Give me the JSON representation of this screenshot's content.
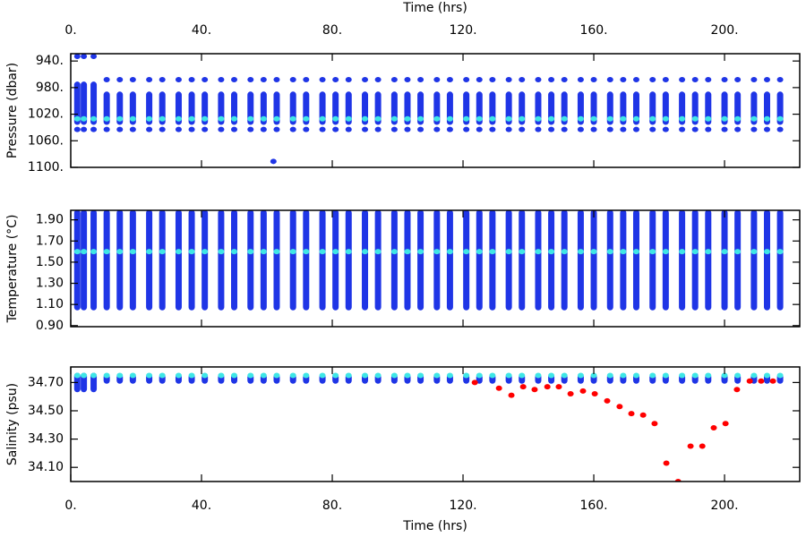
{
  "chart_data": [
    {
      "type": "scatter",
      "xlabel": "Time (hrs)",
      "ylabel": "Pressure (dbar)",
      "xlim": [
        0,
        223
      ],
      "xticks": [
        {
          "value": 0,
          "label": "0."
        },
        {
          "value": 40,
          "label": "40."
        },
        {
          "value": 80,
          "label": "80."
        },
        {
          "value": 120,
          "label": "120."
        },
        {
          "value": 160,
          "label": "160."
        },
        {
          "value": 200,
          "label": "200."
        }
      ],
      "ylim": [
        1100,
        929
      ],
      "yticks": [
        {
          "value": 940,
          "label": "940."
        },
        {
          "value": 980,
          "label": "980."
        },
        {
          "value": 1020,
          "label": "1020."
        },
        {
          "value": 1060,
          "label": "1060."
        },
        {
          "value": 1100,
          "label": "1100."
        }
      ],
      "x": [
        2,
        4,
        7,
        11,
        15,
        19,
        24,
        28,
        33,
        37,
        41,
        46,
        50,
        55,
        59,
        63,
        68,
        72,
        77,
        81,
        85,
        90,
        94,
        99,
        103,
        107,
        112,
        116,
        121,
        125,
        129,
        134,
        138,
        143,
        147,
        151,
        156,
        160,
        165,
        169,
        173,
        178,
        182,
        187,
        191,
        195,
        200,
        204,
        209,
        213,
        217
      ],
      "series": [
        {
          "color": "#1f35e6",
          "low": [
            975,
            975,
            975,
            990,
            990,
            990,
            990,
            990,
            990,
            990,
            990,
            990,
            990,
            990,
            990,
            990,
            990,
            990,
            990,
            990,
            990,
            990,
            990,
            990,
            990,
            990,
            990,
            990,
            990,
            990,
            990,
            990,
            990,
            990,
            990,
            990,
            990,
            990,
            990,
            990,
            990,
            990,
            990,
            990,
            990,
            990,
            990,
            990,
            990,
            990,
            990
          ],
          "high": [
            1032,
            1032,
            1032,
            1032,
            1032,
            1032,
            1032,
            1032,
            1032,
            1032,
            1032,
            1032,
            1032,
            1032,
            1032,
            1032,
            1032,
            1032,
            1032,
            1032,
            1032,
            1032,
            1032,
            1032,
            1032,
            1032,
            1032,
            1032,
            1032,
            1032,
            1032,
            1032,
            1032,
            1032,
            1032,
            1032,
            1032,
            1032,
            1032,
            1032,
            1032,
            1032,
            1032,
            1032,
            1032,
            1032,
            1032,
            1032,
            1032,
            1032,
            1032
          ]
        },
        {
          "color": "#1f35e6",
          "values": [
            933,
            933,
            933,
            968,
            968,
            968,
            968,
            968,
            968,
            968,
            968,
            968,
            968,
            968,
            968,
            968,
            968,
            968,
            968,
            968,
            968,
            968,
            968,
            968,
            968,
            968,
            968,
            968,
            968,
            968,
            968,
            968,
            968,
            968,
            968,
            968,
            968,
            968,
            968,
            968,
            968,
            968,
            968,
            968,
            968,
            968,
            968,
            968,
            968,
            968,
            968
          ]
        },
        {
          "color": "#1f35e6",
          "values": [
            1043,
            1043,
            1043,
            1043,
            1043,
            1043,
            1043,
            1043,
            1043,
            1043,
            1043,
            1043,
            1043,
            1043,
            1043,
            1043,
            1043,
            1043,
            1043,
            1043,
            1043,
            1043,
            1043,
            1043,
            1043,
            1043,
            1043,
            1043,
            1043,
            1043,
            1043,
            1043,
            1043,
            1043,
            1043,
            1043,
            1043,
            1043,
            1043,
            1043,
            1043,
            1043,
            1043,
            1043,
            1043,
            1043,
            1043,
            1043,
            1043,
            1043,
            1043
          ]
        },
        {
          "color": "#1f35e6",
          "x": [
            62
          ],
          "values": [
            1091
          ]
        },
        {
          "color": "#3fe6e6",
          "values": [
            1027,
            1027,
            1027,
            1027,
            1027,
            1027,
            1027,
            1027,
            1027,
            1027,
            1027,
            1027,
            1027,
            1027,
            1027,
            1027,
            1027,
            1027,
            1027,
            1027,
            1027,
            1027,
            1027,
            1027,
            1027,
            1027,
            1027,
            1027,
            1027,
            1027,
            1027,
            1027,
            1027,
            1027,
            1027,
            1027,
            1027,
            1027,
            1027,
            1027,
            1027,
            1027,
            1027,
            1027,
            1027,
            1027,
            1027,
            1027,
            1027,
            1027,
            1027
          ]
        }
      ]
    },
    {
      "type": "scatter",
      "ylabel": "Temperature (°C)",
      "xlim": [
        0,
        223
      ],
      "xticks": [
        0,
        40,
        80,
        120,
        160,
        200
      ],
      "ylim": [
        0.89,
        1.99
      ],
      "yticks": [
        {
          "value": 0.9,
          "label": "0.90"
        },
        {
          "value": 1.1,
          "label": "1.10"
        },
        {
          "value": 1.3,
          "label": "1.30"
        },
        {
          "value": 1.5,
          "label": "1.50"
        },
        {
          "value": 1.7,
          "label": "1.70"
        },
        {
          "value": 1.9,
          "label": "1.90"
        }
      ],
      "x": [
        2,
        4,
        7,
        11,
        15,
        19,
        24,
        28,
        33,
        37,
        41,
        46,
        50,
        55,
        59,
        63,
        68,
        72,
        77,
        81,
        85,
        90,
        94,
        99,
        103,
        107,
        112,
        116,
        121,
        125,
        129,
        134,
        138,
        143,
        147,
        151,
        156,
        160,
        165,
        169,
        173,
        178,
        182,
        187,
        191,
        195,
        200,
        204,
        209,
        213,
        217
      ],
      "series": [
        {
          "color": "#1f35e6",
          "low": [
            1.07,
            1.07,
            1.07,
            1.07,
            1.07,
            1.07,
            1.07,
            1.07,
            1.07,
            1.07,
            1.07,
            1.07,
            1.07,
            1.07,
            1.07,
            1.07,
            1.07,
            1.07,
            1.07,
            1.07,
            1.07,
            1.07,
            1.07,
            1.07,
            1.07,
            1.07,
            1.07,
            1.07,
            1.07,
            1.07,
            1.07,
            1.07,
            1.07,
            1.07,
            1.07,
            1.07,
            1.07,
            1.07,
            1.07,
            1.07,
            1.07,
            1.07,
            1.07,
            1.07,
            1.07,
            1.07,
            1.07,
            1.07,
            1.07,
            1.07,
            1.07
          ],
          "high": [
            1.97,
            1.97,
            1.97,
            1.97,
            1.97,
            1.97,
            1.97,
            1.97,
            1.97,
            1.97,
            1.97,
            1.97,
            1.97,
            1.97,
            1.97,
            1.97,
            1.97,
            1.97,
            1.97,
            1.97,
            1.97,
            1.97,
            1.97,
            1.97,
            1.97,
            1.97,
            1.97,
            1.97,
            1.97,
            1.97,
            1.97,
            1.97,
            1.97,
            1.97,
            1.97,
            1.97,
            1.97,
            1.97,
            1.97,
            1.97,
            1.97,
            1.97,
            1.97,
            1.97,
            1.97,
            1.97,
            1.97,
            1.97,
            1.97,
            1.97,
            1.97
          ]
        },
        {
          "color": "#3fe6e6",
          "values": [
            1.6,
            1.6,
            1.6,
            1.6,
            1.6,
            1.6,
            1.6,
            1.6,
            1.6,
            1.6,
            1.6,
            1.6,
            1.6,
            1.6,
            1.6,
            1.6,
            1.6,
            1.6,
            1.6,
            1.6,
            1.6,
            1.6,
            1.6,
            1.6,
            1.6,
            1.6,
            1.6,
            1.6,
            1.6,
            1.6,
            1.6,
            1.6,
            1.6,
            1.6,
            1.6,
            1.6,
            1.6,
            1.6,
            1.6,
            1.6,
            1.6,
            1.6,
            1.6,
            1.6,
            1.6,
            1.6,
            1.6,
            1.6,
            1.6,
            1.6,
            1.6
          ]
        }
      ]
    },
    {
      "type": "scatter",
      "xlabel": "Time (hrs)",
      "ylabel": "Salinity (psu)",
      "xlim": [
        0,
        223
      ],
      "xticks": [
        {
          "value": 0,
          "label": "0."
        },
        {
          "value": 40,
          "label": "40."
        },
        {
          "value": 80,
          "label": "80."
        },
        {
          "value": 120,
          "label": "120."
        },
        {
          "value": 160,
          "label": "160."
        },
        {
          "value": 200,
          "label": "200."
        }
      ],
      "ylim": [
        34.0,
        34.81
      ],
      "yticks": [
        {
          "value": 34.1,
          "label": "34.10"
        },
        {
          "value": 34.3,
          "label": "34.30"
        },
        {
          "value": 34.5,
          "label": "34.50"
        },
        {
          "value": 34.7,
          "label": "34.70"
        }
      ],
      "x": [
        2,
        4,
        7,
        11,
        15,
        19,
        24,
        28,
        33,
        37,
        41,
        46,
        50,
        55,
        59,
        63,
        68,
        72,
        77,
        81,
        85,
        90,
        94,
        99,
        103,
        107,
        112,
        116,
        121,
        125,
        129,
        134,
        138,
        143,
        147,
        151,
        156,
        160,
        165,
        169,
        173,
        178,
        182,
        187,
        191,
        195,
        200,
        204,
        209,
        213,
        217
      ],
      "series": [
        {
          "color": "#1f35e6",
          "low": [
            34.65,
            34.65,
            34.65,
            34.71,
            34.71,
            34.71,
            34.71,
            34.71,
            34.71,
            34.71,
            34.71,
            34.71,
            34.71,
            34.71,
            34.71,
            34.71,
            34.71,
            34.71,
            34.71,
            34.71,
            34.71,
            34.71,
            34.71,
            34.71,
            34.71,
            34.71,
            34.71,
            34.71,
            34.71,
            34.71,
            34.71,
            34.71,
            34.71,
            34.71,
            34.71,
            34.71,
            34.71,
            34.71,
            34.71,
            34.71,
            34.71,
            34.71,
            34.71,
            34.71,
            34.71,
            34.71,
            34.71,
            34.71,
            34.71,
            34.71,
            34.71
          ],
          "high": [
            34.75,
            34.75,
            34.75,
            34.74,
            34.74,
            34.74,
            34.74,
            34.74,
            34.74,
            34.74,
            34.74,
            34.74,
            34.74,
            34.74,
            34.74,
            34.74,
            34.74,
            34.74,
            34.74,
            34.74,
            34.74,
            34.74,
            34.74,
            34.74,
            34.74,
            34.74,
            34.74,
            34.74,
            34.74,
            34.74,
            34.74,
            34.74,
            34.74,
            34.74,
            34.74,
            34.74,
            34.74,
            34.74,
            34.74,
            34.74,
            34.74,
            34.74,
            34.74,
            34.74,
            34.74,
            34.74,
            34.74,
            34.74,
            34.74,
            34.74,
            34.74
          ]
        },
        {
          "color": "#3fe6e6",
          "values": [
            34.75,
            34.75,
            34.75,
            34.75,
            34.75,
            34.75,
            34.75,
            34.75,
            34.75,
            34.75,
            34.75,
            34.75,
            34.75,
            34.75,
            34.75,
            34.75,
            34.75,
            34.75,
            34.75,
            34.75,
            34.75,
            34.75,
            34.75,
            34.75,
            34.75,
            34.75,
            34.75,
            34.75,
            34.75,
            34.75,
            34.75,
            34.75,
            34.75,
            34.75,
            34.75,
            34.75,
            34.75,
            34.75,
            34.75,
            34.75,
            34.75,
            34.75,
            34.75,
            34.75,
            34.75,
            34.75,
            34.75,
            34.75,
            34.75,
            34.75,
            34.75
          ]
        },
        {
          "color": "#ff0000",
          "x": [
            123.6,
            131,
            134.8,
            138.4,
            141.9,
            145.8,
            149.3,
            152.9,
            156.7,
            160.3,
            164.1,
            167.9,
            171.5,
            175.1,
            178.6,
            182.2,
            185.8,
            189.6,
            193.2,
            196.7,
            200.3,
            203.8,
            207.7,
            211.2,
            214.8
          ],
          "values": [
            34.7,
            34.66,
            34.61,
            34.67,
            34.65,
            34.67,
            34.67,
            34.62,
            34.64,
            34.62,
            34.57,
            34.53,
            34.48,
            34.47,
            34.41,
            34.13,
            34.0,
            34.25,
            34.25,
            34.38,
            34.41,
            34.65,
            34.71,
            34.71,
            34.71
          ]
        }
      ]
    }
  ]
}
